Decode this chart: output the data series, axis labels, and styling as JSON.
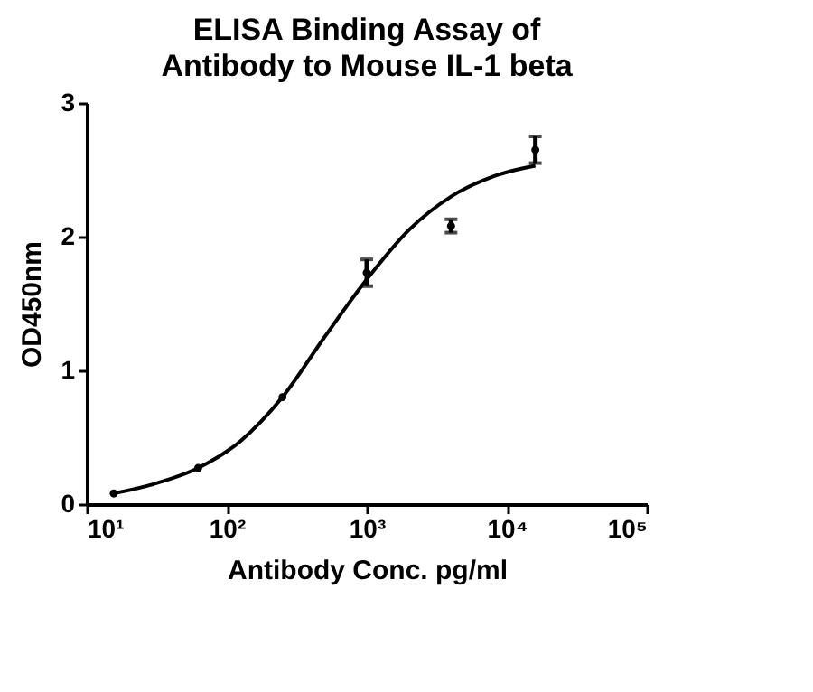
{
  "chart_data": {
    "type": "scatter",
    "title": "ELISA Binding Assay of Antibody to Mouse IL-1 beta",
    "xlabel": "Antibody Conc. pg/ml",
    "ylabel": "OD450nm",
    "log": "x",
    "xlim": [
      10,
      100000
    ],
    "xticks": [
      {
        "value": 10,
        "label": "10¹"
      },
      {
        "value": 100,
        "label": "10²"
      },
      {
        "value": 1000,
        "label": "10³"
      },
      {
        "value": 10000,
        "label": "10⁴"
      },
      {
        "value": 100000,
        "label": "10⁵"
      }
    ],
    "ylim": [
      0,
      3
    ],
    "yticks": [
      0,
      1,
      2,
      3
    ],
    "grid": false,
    "marker": "circle",
    "series": [
      {
        "color": "#000000",
        "x": [
          15.6,
          62.5,
          250,
          1000,
          4000,
          16000
        ],
        "values": [
          0.08,
          0.27,
          0.8,
          1.73,
          2.08,
          2.65
        ],
        "errors": [
          null,
          null,
          null,
          [
            1.63,
            1.83
          ],
          [
            2.03,
            2.13
          ],
          [
            2.55,
            2.75
          ]
        ]
      },
      {
        "type": "line",
        "color": "#000000",
        "marker": "none",
        "line_style": "solid",
        "x": [
          15.6,
          30,
          62.5,
          125,
          250,
          500,
          1000,
          2000,
          4000,
          8000,
          16000
        ],
        "values": [
          0.08,
          0.15,
          0.27,
          0.47,
          0.8,
          1.25,
          1.68,
          2.05,
          2.3,
          2.45,
          2.53
        ]
      }
    ]
  }
}
